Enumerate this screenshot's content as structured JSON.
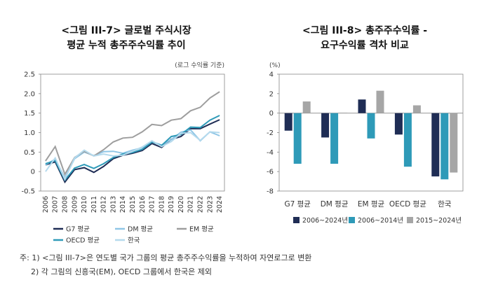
{
  "chart_data": [
    {
      "type": "line",
      "title_line1": "<그림 III-7> 글로벌 주식시장",
      "title_line2": "평균 누적 총주주수익률 추이",
      "unit_note": "(로그 수익률 기준)",
      "x": [
        "2006",
        "2007",
        "2008",
        "2009",
        "2010",
        "2011",
        "2012",
        "2013",
        "2014",
        "2015",
        "2016",
        "2017",
        "2018",
        "2019",
        "2020",
        "2021",
        "2022",
        "2023",
        "2024"
      ],
      "ylim": [
        -0.5,
        2.5
      ],
      "yticks": [
        "2.5",
        "2.0",
        "1.5",
        "1.0",
        "0.5",
        "0",
        "-0.5"
      ],
      "series": [
        {
          "name": "G7 평균",
          "color": "#1f2d55",
          "values": [
            0.17,
            0.25,
            -0.27,
            0.05,
            0.1,
            -0.02,
            0.13,
            0.33,
            0.42,
            0.47,
            0.54,
            0.72,
            0.62,
            0.83,
            0.9,
            1.1,
            1.1,
            1.22,
            1.33
          ]
        },
        {
          "name": "DM 평균",
          "color": "#8fc6e6",
          "values": [
            0.17,
            0.32,
            -0.16,
            0.33,
            0.5,
            0.41,
            0.51,
            0.52,
            0.47,
            0.55,
            0.61,
            0.77,
            0.68,
            0.82,
            1.01,
            1.07,
            0.79,
            1.02,
            0.92
          ]
        },
        {
          "name": "EM 평균",
          "color": "#9e9e9e",
          "values": [
            0.27,
            0.64,
            -0.07,
            0.36,
            0.52,
            0.4,
            0.56,
            0.76,
            0.86,
            0.88,
            1.02,
            1.21,
            1.18,
            1.32,
            1.36,
            1.56,
            1.65,
            1.89,
            2.05
          ]
        },
        {
          "name": "OECD 평균",
          "color": "#2e9ab8",
          "values": [
            0.2,
            0.28,
            -0.22,
            0.09,
            0.18,
            0.08,
            0.2,
            0.36,
            0.45,
            0.49,
            0.57,
            0.76,
            0.67,
            0.9,
            0.95,
            1.14,
            1.13,
            1.32,
            1.44
          ]
        },
        {
          "name": "한국",
          "color": "#b5daed",
          "values": [
            0.0,
            0.35,
            -0.2,
            0.35,
            0.55,
            0.4,
            0.45,
            0.4,
            0.42,
            0.52,
            0.63,
            0.79,
            0.64,
            0.77,
            0.98,
            1.0,
            0.8,
            1.02,
            1.0
          ]
        }
      ]
    },
    {
      "type": "bar",
      "title_line1": "<그림 III-8> 총주주수익률 -",
      "title_line2": "요구수익률 격차 비교",
      "unit_note": "(%)",
      "categories": [
        "G7 평균",
        "DM 평균",
        "EM 평균",
        "OECD 평균",
        "한국"
      ],
      "ylim": [
        -8,
        4
      ],
      "yticks": [
        "4",
        "2",
        "0",
        "-2",
        "-4",
        "-6",
        "-8"
      ],
      "series": [
        {
          "name": "2006~2024년",
          "color": "#1f2d55",
          "values": [
            -1.8,
            -2.5,
            1.4,
            -2.2,
            -6.5
          ]
        },
        {
          "name": "2006~2014년",
          "color": "#2e9ab8",
          "values": [
            -5.2,
            -5.2,
            -2.6,
            -5.5,
            -6.8
          ]
        },
        {
          "name": "2015~2024년",
          "color": "#a6a6a6",
          "values": [
            1.2,
            0.05,
            2.3,
            0.8,
            -6.1
          ]
        }
      ]
    }
  ],
  "notes": [
    "주: 1) <그림 III-7>은 연도별 국가 그룹의 평균 총주주수익률을 누적하여 자연로그로 변환",
    "2) 각 그림의 신흥국(EM), OECD 그룹에서 한국은 제외"
  ]
}
